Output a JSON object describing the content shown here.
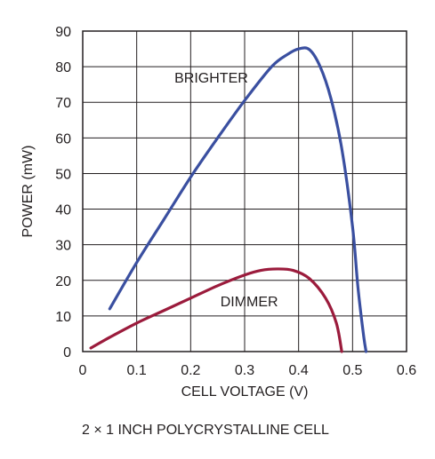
{
  "chart_data": {
    "type": "line",
    "xlabel": "CELL VOLTAGE (V)",
    "ylabel": "POWER (mW)",
    "xlim": [
      0,
      0.6
    ],
    "ylim": [
      0,
      90
    ],
    "x_ticks": [
      "0",
      "0.1",
      "0.2",
      "0.3",
      "0.4",
      "0.5",
      "0.6"
    ],
    "y_ticks": [
      "0",
      "10",
      "20",
      "30",
      "40",
      "50",
      "60",
      "70",
      "80",
      "90"
    ],
    "grid": true,
    "annotations": [
      {
        "text": "BRIGHTER",
        "x": 0.17,
        "y": 75.5
      },
      {
        "text": "DIMMER",
        "x": 0.255,
        "y": 12.7
      }
    ],
    "series": [
      {
        "name": "BRIGHTER",
        "color": "#3a4fa0",
        "x": [
          0.05,
          0.1,
          0.15,
          0.2,
          0.25,
          0.3,
          0.35,
          0.38,
          0.4,
          0.42,
          0.44,
          0.46,
          0.48,
          0.5,
          0.51,
          0.52,
          0.525
        ],
        "y": [
          12,
          25,
          37,
          49,
          60,
          70.5,
          80,
          83.5,
          85,
          84.8,
          80,
          71,
          57,
          35,
          18,
          5,
          0
        ]
      },
      {
        "name": "DIMMER",
        "color": "#9b1b3c",
        "x": [
          0.015,
          0.05,
          0.1,
          0.15,
          0.2,
          0.25,
          0.3,
          0.33,
          0.36,
          0.39,
          0.42,
          0.45,
          0.47,
          0.48
        ],
        "y": [
          1,
          4,
          8,
          11.5,
          15,
          18.5,
          21.5,
          22.8,
          23.2,
          22.8,
          20.5,
          15,
          8,
          0
        ]
      }
    ]
  },
  "caption": "2 × 1 INCH POLYCRYSTALLINE CELL"
}
